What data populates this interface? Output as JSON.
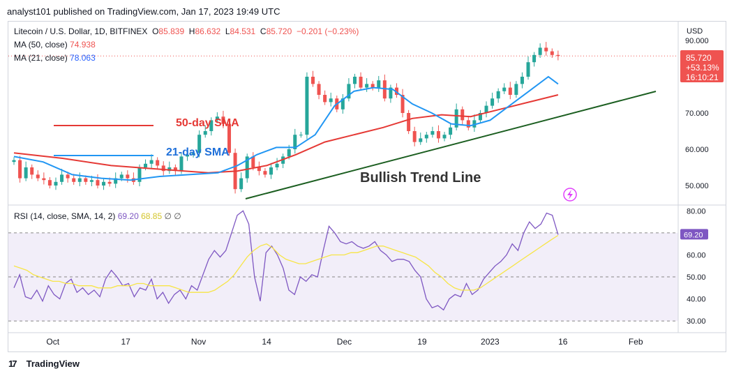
{
  "header": {
    "published": "analyst101 published on TradingView.com, Jan 17, 2023 19:49 UTC"
  },
  "legend": {
    "symbol": "Litecoin / U.S. Dollar, 1D, BITFINEX",
    "o_label": "O",
    "o": "85.839",
    "h_label": "H",
    "h": "86.632",
    "l_label": "L",
    "l": "84.531",
    "c_label": "C",
    "c": "85.720",
    "change": "−0.201 (−0.23%)",
    "ma50_label": "MA (50, close)",
    "ma50": "74.938",
    "ma21_label": "MA (21, close)",
    "ma21": "78.063",
    "rsi_label": "RSI (14, close, SMA, 14, 2)",
    "rsi": "69.20",
    "rsi_sma": "68.85",
    "rsi_extra": "∅ ∅"
  },
  "price_badge": {
    "price": "85.720",
    "change_pct": "+53.13%",
    "countdown": "16:10:21"
  },
  "annotations": {
    "sma50": "50-day SMA",
    "sma21": "21-day SMA",
    "trendline": "Bullish Trend Line"
  },
  "footer": {
    "brand": "TradingView"
  },
  "colors": {
    "up": "#26a69a",
    "down": "#ef5350",
    "ma50": "#e53935",
    "ma21": "#2196f3",
    "rsi": "#7e57c2",
    "rsi_sma": "#f7e547",
    "trend": "#1b5e20"
  },
  "chart_data": [
    {
      "type": "line",
      "title": "Litecoin / U.S. Dollar, 1D, BITFINEX",
      "currency": "USD",
      "ylim": [
        45,
        95
      ],
      "y_ticks": [
        "90.000",
        "70.000",
        "60.000",
        "50.000"
      ],
      "x_ticks": [
        "Oct",
        "17",
        "Nov",
        "14",
        "Dec",
        "19",
        "2023",
        "16",
        "Feb"
      ],
      "x_tick_days": [
        8,
        23,
        38,
        52,
        68,
        84,
        98,
        113,
        128
      ],
      "series": [
        {
          "name": "MA (50, close)",
          "x": [
            0,
            10,
            20,
            30,
            40,
            46,
            52,
            58,
            64,
            70,
            76,
            82,
            88,
            94,
            100,
            106,
            112
          ],
          "values": [
            59,
            57.5,
            55.5,
            54.5,
            53.5,
            54,
            55.5,
            58.5,
            62,
            64,
            66,
            68.5,
            69.5,
            69,
            71,
            73,
            75
          ]
        },
        {
          "name": "MA (21, close)",
          "x": [
            0,
            6,
            12,
            18,
            24,
            30,
            36,
            42,
            46,
            50,
            54,
            58,
            62,
            66,
            70,
            74,
            78,
            82,
            86,
            90,
            94,
            98,
            102,
            106,
            110,
            112
          ],
          "values": [
            58,
            56.5,
            53,
            52,
            51.5,
            52.5,
            53,
            53.5,
            55.5,
            58.5,
            60.5,
            60.5,
            64,
            72,
            76,
            77,
            76.5,
            72.5,
            70,
            67,
            66.5,
            68,
            72,
            76,
            80,
            78
          ]
        }
      ],
      "candles_close": [
        57,
        52,
        55,
        53,
        52,
        51.5,
        50,
        51,
        53,
        52,
        51,
        52,
        51,
        51.5,
        50,
        51,
        50.5,
        52,
        53,
        52,
        51,
        55,
        56,
        57,
        55.5,
        54,
        55,
        54,
        58,
        58.5,
        59,
        64,
        65,
        68,
        69,
        67,
        59,
        49,
        52,
        58,
        55,
        54,
        53,
        55,
        56,
        58,
        60,
        64,
        64,
        80,
        78,
        75,
        73,
        74,
        71,
        74,
        78,
        80,
        77,
        78,
        77,
        79,
        74,
        77,
        75,
        70,
        65,
        62,
        63,
        64,
        65,
        63,
        64,
        66,
        71,
        68,
        66,
        68,
        70,
        72,
        74,
        76,
        77,
        75,
        78,
        80,
        84,
        86,
        88,
        87,
        86,
        85.72
      ]
    },
    {
      "type": "line",
      "title": "RSI (14, close, SMA, 14, 2)",
      "ylim": [
        25,
        82
      ],
      "y_ticks": [
        "80.00",
        "70.00",
        "60.00",
        "50.00",
        "40.00",
        "30.00"
      ],
      "series": [
        {
          "name": "RSI",
          "values": [
            45,
            51,
            41,
            40,
            44,
            39,
            46,
            42,
            40,
            47,
            49,
            43,
            45,
            42,
            44,
            41,
            49,
            53,
            50,
            46,
            47,
            41,
            45,
            44,
            49,
            40,
            43,
            38,
            42,
            44,
            40,
            46,
            44,
            51,
            58,
            62,
            59,
            62,
            70,
            78,
            80,
            74,
            50,
            39,
            61,
            64,
            60,
            54,
            44,
            42,
            50,
            48,
            51,
            50,
            62,
            73,
            70,
            66,
            65,
            66,
            64,
            63,
            64,
            66,
            62,
            60,
            57,
            58,
            58,
            57,
            53,
            50,
            40,
            36,
            37,
            35,
            40,
            42,
            41,
            47,
            42,
            44,
            49,
            52,
            55,
            57,
            60,
            65,
            62,
            70,
            75,
            72,
            74,
            79,
            78,
            69.2
          ]
        },
        {
          "name": "RSI SMA",
          "values": [
            55,
            54,
            53,
            51,
            50,
            49,
            48,
            48,
            47,
            47,
            46,
            46,
            46,
            45,
            45,
            45,
            46,
            46,
            46,
            47,
            47,
            46,
            46,
            46,
            46,
            45,
            44,
            43,
            43,
            43,
            43,
            44,
            46,
            48,
            51,
            55,
            59,
            62,
            64,
            65,
            63,
            60,
            58,
            57,
            56,
            56,
            57,
            58,
            59,
            60,
            60,
            60,
            61,
            61,
            62,
            63,
            64,
            64,
            63,
            62,
            61,
            60,
            59,
            57,
            55,
            52,
            50,
            47,
            45,
            44,
            44,
            44,
            45,
            47,
            49,
            51,
            53,
            55,
            57,
            59,
            61,
            63,
            65,
            67,
            68.85
          ]
        }
      ]
    }
  ]
}
